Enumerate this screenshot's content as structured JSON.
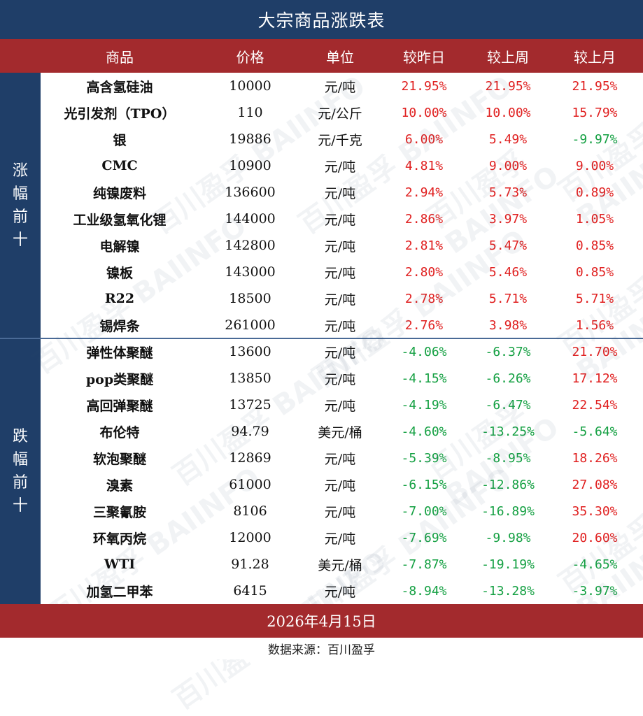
{
  "title": "大宗商品涨跌表",
  "headers": [
    "商品",
    "价格",
    "单位",
    "较昨日",
    "较上周",
    "较上月"
  ],
  "groups": {
    "gain_label": "涨幅前十",
    "loss_label": "跌幅前十"
  },
  "rows": [
    {
      "name": "高含氢硅油",
      "price": "10000",
      "unit": "元/吨",
      "day": "21.95%",
      "week": "21.95%",
      "month": "21.95%"
    },
    {
      "name": "光引发剂（TPO）",
      "price": "110",
      "unit": "元/公斤",
      "day": "10.00%",
      "week": "10.00%",
      "month": "15.79%"
    },
    {
      "name": "银",
      "price": "19886",
      "unit": "元/千克",
      "day": "6.00%",
      "week": "5.49%",
      "month": "-9.97%"
    },
    {
      "name": "CMC",
      "price": "10900",
      "unit": "元/吨",
      "day": "4.81%",
      "week": "9.00%",
      "month": "9.00%"
    },
    {
      "name": "纯镍废料",
      "price": "136600",
      "unit": "元/吨",
      "day": "2.94%",
      "week": "5.73%",
      "month": "0.89%"
    },
    {
      "name": "工业级氢氧化锂",
      "price": "144000",
      "unit": "元/吨",
      "day": "2.86%",
      "week": "3.97%",
      "month": "1.05%"
    },
    {
      "name": "电解镍",
      "price": "142800",
      "unit": "元/吨",
      "day": "2.81%",
      "week": "5.47%",
      "month": "0.85%"
    },
    {
      "name": "镍板",
      "price": "143000",
      "unit": "元/吨",
      "day": "2.80%",
      "week": "5.46%",
      "month": "0.85%"
    },
    {
      "name": "R22",
      "price": "18500",
      "unit": "元/吨",
      "day": "2.78%",
      "week": "5.71%",
      "month": "5.71%"
    },
    {
      "name": "锡焊条",
      "price": "261000",
      "unit": "元/吨",
      "day": "2.76%",
      "week": "3.98%",
      "month": "1.56%"
    },
    {
      "name": "弹性体聚醚",
      "price": "13600",
      "unit": "元/吨",
      "day": "-4.06%",
      "week": "-6.37%",
      "month": "21.70%"
    },
    {
      "name": "pop类聚醚",
      "price": "13850",
      "unit": "元/吨",
      "day": "-4.15%",
      "week": "-6.26%",
      "month": "17.12%"
    },
    {
      "name": "高回弹聚醚",
      "price": "13725",
      "unit": "元/吨",
      "day": "-4.19%",
      "week": "-6.47%",
      "month": "22.54%"
    },
    {
      "name": "布伦特",
      "price": "94.79",
      "unit": "美元/桶",
      "day": "-4.60%",
      "week": "-13.25%",
      "month": "-5.64%"
    },
    {
      "name": "软泡聚醚",
      "price": "12869",
      "unit": "元/吨",
      "day": "-5.39%",
      "week": "-8.95%",
      "month": "18.26%"
    },
    {
      "name": "溴素",
      "price": "61000",
      "unit": "元/吨",
      "day": "-6.15%",
      "week": "-12.86%",
      "month": "27.08%"
    },
    {
      "name": "三聚氰胺",
      "price": "8106",
      "unit": "元/吨",
      "day": "-7.00%",
      "week": "-16.89%",
      "month": "35.30%"
    },
    {
      "name": "环氧丙烷",
      "price": "12000",
      "unit": "元/吨",
      "day": "-7.69%",
      "week": "-9.98%",
      "month": "20.60%"
    },
    {
      "name": "WTI",
      "price": "91.28",
      "unit": "美元/桶",
      "day": "-7.87%",
      "week": "-19.19%",
      "month": "-4.65%"
    },
    {
      "name": "加氢二甲苯",
      "price": "6415",
      "unit": "元/吨",
      "day": "-8.94%",
      "week": "-13.28%",
      "month": "-3.97%"
    }
  ],
  "date": "2026年4月15日",
  "source": "数据来源：百川盈孚",
  "watermark": "百川盈孚 BAIINFO",
  "colors": {
    "up": "#e02020",
    "down": "#14a042",
    "header": "#a32a2d",
    "title": "#1f3e68"
  }
}
